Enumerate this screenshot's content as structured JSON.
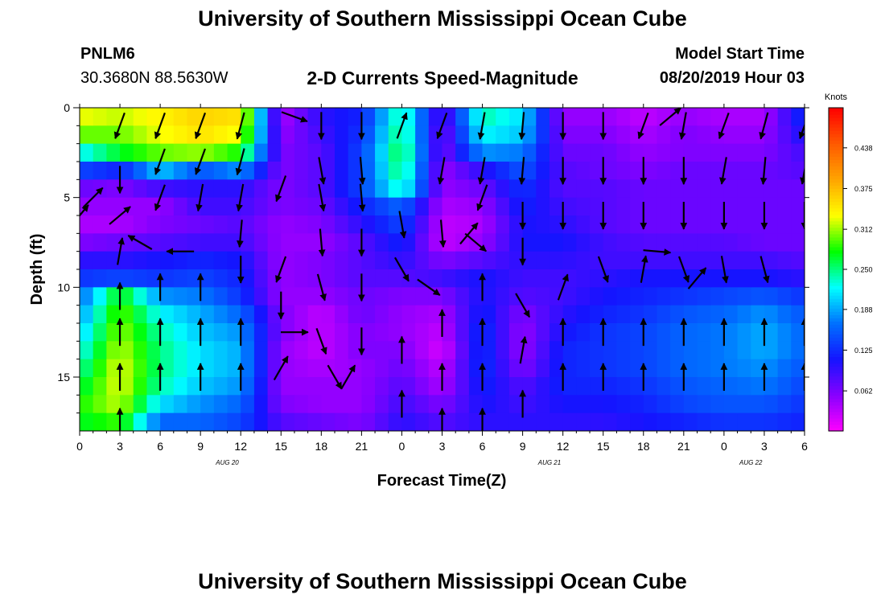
{
  "header": {
    "title": "University of Southern Mississippi Ocean Cube",
    "station_id": "PNLM6",
    "station_coords": "30.3680N 88.5630W",
    "subtitle": "2-D Currents Speed-Magnitude",
    "model_label": "Model Start Time",
    "model_time": "08/20/2019 Hour 03"
  },
  "footer": {
    "title": "University of Southern Mississippi Ocean Cube"
  },
  "chart_data": {
    "type": "heatmap",
    "xlabel": "Forecast Time(Z)",
    "ylabel": "Depth (ft)",
    "x_ticks": [
      "0",
      "3",
      "6",
      "9",
      "12",
      "15",
      "18",
      "21",
      "0",
      "3",
      "6",
      "9",
      "12",
      "15",
      "18",
      "21",
      "0",
      "3",
      "6"
    ],
    "date_labels": [
      {
        "label": "AUG 20",
        "tick_index": 11
      },
      {
        "label": "AUG 21",
        "tick_index": 35
      },
      {
        "label": "AUG 22",
        "tick_index": 50
      }
    ],
    "y_ticks": [
      0,
      5,
      10,
      15
    ],
    "ylim": [
      0,
      18
    ],
    "xlim_hours": [
      0,
      54
    ],
    "colorbar": {
      "title": "Knots",
      "tick_labels": [
        "0.062",
        "0.125",
        "0.188",
        "0.250",
        "0.312",
        "0.375",
        "0.438"
      ],
      "tick_values": [
        0.062,
        0.125,
        0.188,
        0.25,
        0.312,
        0.375,
        0.438
      ],
      "range": [
        0,
        0.5
      ],
      "colors": [
        "#ff00ff",
        "#8800ff",
        "#1414ff",
        "#0070ff",
        "#00ffff",
        "#00ff00",
        "#ffff00",
        "#ffa500",
        "#ff5a00",
        "#ff0000"
      ]
    },
    "depths": [
      0.5,
      1.5,
      2.5,
      3.5,
      4.5,
      5.5,
      6.5,
      7.5,
      8.5,
      9.5,
      10.5,
      11.5,
      12.5,
      13.5,
      14.5,
      15.5,
      16.5,
      17.5
    ],
    "columns": [
      {
        "hour": 0,
        "speed": [
          0.33,
          0.3,
          0.22,
          0.14,
          0.07,
          0.05,
          0.04,
          0.06,
          0.1,
          0.13,
          0.16,
          0.18,
          0.2,
          0.22,
          0.24,
          0.26,
          0.28,
          0.27
        ]
      },
      {
        "hour": 3,
        "speed": [
          0.32,
          0.3,
          0.27,
          0.12,
          0.06,
          0.05,
          0.04,
          0.07,
          0.1,
          0.14,
          0.28,
          0.3,
          0.31,
          0.32,
          0.33,
          0.33,
          0.32,
          0.29
        ]
      },
      {
        "hour": 6,
        "speed": [
          0.34,
          0.33,
          0.3,
          0.2,
          0.09,
          0.05,
          0.06,
          0.08,
          0.11,
          0.13,
          0.18,
          0.22,
          0.24,
          0.25,
          0.25,
          0.24,
          0.21,
          0.16
        ]
      },
      {
        "hour": 9,
        "speed": [
          0.36,
          0.35,
          0.31,
          0.15,
          0.1,
          0.09,
          0.07,
          0.09,
          0.12,
          0.14,
          0.17,
          0.19,
          0.2,
          0.21,
          0.21,
          0.2,
          0.18,
          0.16
        ]
      },
      {
        "hour": 12,
        "speed": [
          0.35,
          0.33,
          0.28,
          0.18,
          0.1,
          0.09,
          0.08,
          0.09,
          0.11,
          0.12,
          0.13,
          0.16,
          0.18,
          0.19,
          0.19,
          0.18,
          0.16,
          0.14
        ]
      },
      {
        "hour": 15,
        "speed": [
          0.04,
          0.05,
          0.06,
          0.06,
          0.06,
          0.06,
          0.05,
          0.05,
          0.05,
          0.05,
          0.05,
          0.06,
          0.06,
          0.05,
          0.05,
          0.05,
          0.06,
          0.08
        ]
      },
      {
        "hour": 18,
        "speed": [
          0.1,
          0.09,
          0.08,
          0.08,
          0.08,
          0.07,
          0.06,
          0.05,
          0.06,
          0.06,
          0.05,
          0.03,
          0.03,
          0.03,
          0.04,
          0.05,
          0.05,
          0.07
        ]
      },
      {
        "hour": 21,
        "speed": [
          0.12,
          0.13,
          0.14,
          0.14,
          0.14,
          0.12,
          0.1,
          0.08,
          0.08,
          0.08,
          0.07,
          0.07,
          0.06,
          0.06,
          0.05,
          0.05,
          0.05,
          0.06
        ]
      },
      {
        "hour": 24,
        "speed": [
          0.25,
          0.26,
          0.27,
          0.26,
          0.24,
          0.16,
          0.14,
          0.12,
          0.1,
          0.08,
          0.06,
          0.05,
          0.05,
          0.06,
          0.07,
          0.08,
          0.09,
          0.1
        ]
      },
      {
        "hour": 27,
        "speed": [
          0.07,
          0.06,
          0.06,
          0.05,
          0.05,
          0.04,
          0.03,
          0.03,
          0.06,
          0.09,
          0.06,
          0.04,
          0.03,
          0.02,
          0.03,
          0.04,
          0.06,
          0.08
        ]
      },
      {
        "hour": 30,
        "speed": [
          0.24,
          0.22,
          0.18,
          0.1,
          0.07,
          0.05,
          0.04,
          0.05,
          0.08,
          0.11,
          0.11,
          0.12,
          0.13,
          0.13,
          0.13,
          0.12,
          0.11,
          0.1
        ]
      },
      {
        "hour": 33,
        "speed": [
          0.21,
          0.2,
          0.17,
          0.15,
          0.13,
          0.12,
          0.11,
          0.11,
          0.1,
          0.09,
          0.08,
          0.06,
          0.05,
          0.05,
          0.06,
          0.08,
          0.09,
          0.1
        ]
      },
      {
        "hour": 36,
        "speed": [
          0.05,
          0.06,
          0.07,
          0.08,
          0.08,
          0.09,
          0.1,
          0.11,
          0.1,
          0.09,
          0.09,
          0.1,
          0.11,
          0.12,
          0.12,
          0.12,
          0.11,
          0.1
        ]
      },
      {
        "hour": 39,
        "speed": [
          0.05,
          0.06,
          0.07,
          0.07,
          0.08,
          0.08,
          0.08,
          0.09,
          0.09,
          0.1,
          0.11,
          0.12,
          0.13,
          0.13,
          0.13,
          0.12,
          0.11,
          0.1
        ]
      },
      {
        "hour": 42,
        "speed": [
          0.03,
          0.04,
          0.05,
          0.06,
          0.07,
          0.07,
          0.07,
          0.08,
          0.09,
          0.11,
          0.12,
          0.13,
          0.14,
          0.14,
          0.14,
          0.13,
          0.12,
          0.11
        ]
      },
      {
        "hour": 45,
        "speed": [
          0.05,
          0.06,
          0.06,
          0.07,
          0.07,
          0.07,
          0.07,
          0.08,
          0.09,
          0.11,
          0.13,
          0.15,
          0.16,
          0.16,
          0.16,
          0.15,
          0.14,
          0.12
        ]
      },
      {
        "hour": 48,
        "speed": [
          0.04,
          0.05,
          0.06,
          0.07,
          0.07,
          0.07,
          0.07,
          0.08,
          0.09,
          0.11,
          0.14,
          0.16,
          0.17,
          0.17,
          0.17,
          0.16,
          0.15,
          0.13
        ]
      },
      {
        "hour": 51,
        "speed": [
          0.04,
          0.05,
          0.06,
          0.07,
          0.07,
          0.07,
          0.07,
          0.07,
          0.09,
          0.11,
          0.15,
          0.18,
          0.19,
          0.19,
          0.18,
          0.17,
          0.15,
          0.13
        ]
      },
      {
        "hour": 54,
        "speed": [
          0.13,
          0.11,
          0.09,
          0.08,
          0.07,
          0.07,
          0.07,
          0.07,
          0.08,
          0.1,
          0.13,
          0.15,
          0.16,
          0.16,
          0.15,
          0.14,
          0.13,
          0.12
        ]
      }
    ],
    "vectors": [
      {
        "hour": 0,
        "depth": 6.0,
        "dir": 40
      },
      {
        "hour": 1,
        "depth": 5.0,
        "dir": 45
      },
      {
        "hour": 3,
        "depth": 1.0,
        "dir": 200
      },
      {
        "hour": 3,
        "depth": 4.0,
        "dir": 180
      },
      {
        "hour": 3,
        "depth": 6.0,
        "dir": 50
      },
      {
        "hour": 3,
        "depth": 8.0,
        "dir": 10
      },
      {
        "hour": 3,
        "depth": 10.5,
        "dir": 0
      },
      {
        "hour": 3,
        "depth": 12.5,
        "dir": 0
      },
      {
        "hour": 3,
        "depth": 15.0,
        "dir": 0
      },
      {
        "hour": 3,
        "depth": 17.5,
        "dir": 0
      },
      {
        "hour": 4.5,
        "depth": 7.5,
        "dir": 300
      },
      {
        "hour": 6,
        "depth": 1.0,
        "dir": 200
      },
      {
        "hour": 6,
        "depth": 3.0,
        "dir": 200
      },
      {
        "hour": 6,
        "depth": 5.0,
        "dir": 200
      },
      {
        "hour": 6,
        "depth": 10.0,
        "dir": 0
      },
      {
        "hour": 6,
        "depth": 12.5,
        "dir": 0
      },
      {
        "hour": 6,
        "depth": 15.0,
        "dir": 0
      },
      {
        "hour": 7.5,
        "depth": 8.0,
        "dir": 270
      },
      {
        "hour": 9,
        "depth": 1.0,
        "dir": 200
      },
      {
        "hour": 9,
        "depth": 3.0,
        "dir": 200
      },
      {
        "hour": 9,
        "depth": 5.0,
        "dir": 190
      },
      {
        "hour": 9,
        "depth": 10.0,
        "dir": 0
      },
      {
        "hour": 9,
        "depth": 12.5,
        "dir": 0
      },
      {
        "hour": 9,
        "depth": 15.0,
        "dir": 0
      },
      {
        "hour": 12,
        "depth": 1.0,
        "dir": 195
      },
      {
        "hour": 12,
        "depth": 3.0,
        "dir": 195
      },
      {
        "hour": 12,
        "depth": 5.0,
        "dir": 190
      },
      {
        "hour": 12,
        "depth": 7.0,
        "dir": 185
      },
      {
        "hour": 12,
        "depth": 9.0,
        "dir": 180
      },
      {
        "hour": 12,
        "depth": 12.5,
        "dir": 0
      },
      {
        "hour": 12,
        "depth": 15.0,
        "dir": 0
      },
      {
        "hour": 15,
        "depth": 4.5,
        "dir": 200
      },
      {
        "hour": 16,
        "depth": 0.5,
        "dir": 110
      },
      {
        "hour": 15,
        "depth": 9.0,
        "dir": 200
      },
      {
        "hour": 15,
        "depth": 11.0,
        "dir": 180
      },
      {
        "hour": 15,
        "depth": 14.5,
        "dir": 30
      },
      {
        "hour": 16,
        "depth": 12.5,
        "dir": 90
      },
      {
        "hour": 18,
        "depth": 1.0,
        "dir": 180
      },
      {
        "hour": 18,
        "depth": 3.5,
        "dir": 170
      },
      {
        "hour": 18,
        "depth": 5.0,
        "dir": 170
      },
      {
        "hour": 18,
        "depth": 7.5,
        "dir": 175
      },
      {
        "hour": 18,
        "depth": 10.0,
        "dir": 165
      },
      {
        "hour": 18,
        "depth": 13.0,
        "dir": 160
      },
      {
        "hour": 19,
        "depth": 15.0,
        "dir": 150
      },
      {
        "hour": 20,
        "depth": 15.0,
        "dir": 30
      },
      {
        "hour": 21,
        "depth": 1.0,
        "dir": 180
      },
      {
        "hour": 21,
        "depth": 3.5,
        "dir": 175
      },
      {
        "hour": 21,
        "depth": 5.0,
        "dir": 175
      },
      {
        "hour": 21,
        "depth": 7.5,
        "dir": 180
      },
      {
        "hour": 21,
        "depth": 10.0,
        "dir": 180
      },
      {
        "hour": 21,
        "depth": 13.0,
        "dir": 180
      },
      {
        "hour": 24,
        "depth": 1.0,
        "dir": 20
      },
      {
        "hour": 24,
        "depth": 6.5,
        "dir": 170
      },
      {
        "hour": 24,
        "depth": 9.0,
        "dir": 150
      },
      {
        "hour": 24,
        "depth": 13.5,
        "dir": 0
      },
      {
        "hour": 24,
        "depth": 16.5,
        "dir": 0
      },
      {
        "hour": 26,
        "depth": 10.0,
        "dir": 125
      },
      {
        "hour": 27,
        "depth": 1.0,
        "dir": 200
      },
      {
        "hour": 27,
        "depth": 3.5,
        "dir": 190
      },
      {
        "hour": 27,
        "depth": 7.0,
        "dir": 175
      },
      {
        "hour": 27,
        "depth": 12.0,
        "dir": 0
      },
      {
        "hour": 27,
        "depth": 15.0,
        "dir": 0
      },
      {
        "hour": 27,
        "depth": 17.5,
        "dir": 0
      },
      {
        "hour": 29,
        "depth": 7.0,
        "dir": 40
      },
      {
        "hour": 30,
        "depth": 1.0,
        "dir": 190
      },
      {
        "hour": 30,
        "depth": 3.5,
        "dir": 190
      },
      {
        "hour": 30,
        "depth": 5.0,
        "dir": 200
      },
      {
        "hour": 30,
        "depth": 10.0,
        "dir": 0
      },
      {
        "hour": 30,
        "depth": 12.5,
        "dir": 0
      },
      {
        "hour": 30,
        "depth": 15.0,
        "dir": 0
      },
      {
        "hour": 30,
        "depth": 17.5,
        "dir": 0
      },
      {
        "hour": 29.5,
        "depth": 7.5,
        "dir": 130
      },
      {
        "hour": 33,
        "depth": 1.0,
        "dir": 185
      },
      {
        "hour": 33,
        "depth": 3.5,
        "dir": 185
      },
      {
        "hour": 33,
        "depth": 6.0,
        "dir": 180
      },
      {
        "hour": 33,
        "depth": 8.0,
        "dir": 180
      },
      {
        "hour": 33,
        "depth": 11.0,
        "dir": 150
      },
      {
        "hour": 33,
        "depth": 13.5,
        "dir": 10
      },
      {
        "hour": 33,
        "depth": 16.5,
        "dir": 0
      },
      {
        "hour": 36,
        "depth": 1.0,
        "dir": 180
      },
      {
        "hour": 36,
        "depth": 3.5,
        "dir": 180
      },
      {
        "hour": 36,
        "depth": 6.0,
        "dir": 180
      },
      {
        "hour": 36,
        "depth": 10.0,
        "dir": 20
      },
      {
        "hour": 36,
        "depth": 12.5,
        "dir": 0
      },
      {
        "hour": 36,
        "depth": 15.0,
        "dir": 0
      },
      {
        "hour": 39,
        "depth": 1.0,
        "dir": 180
      },
      {
        "hour": 39,
        "depth": 3.5,
        "dir": 180
      },
      {
        "hour": 39,
        "depth": 6.0,
        "dir": 180
      },
      {
        "hour": 39,
        "depth": 9.0,
        "dir": 160
      },
      {
        "hour": 39,
        "depth": 12.5,
        "dir": 0
      },
      {
        "hour": 39,
        "depth": 15.0,
        "dir": 0
      },
      {
        "hour": 42,
        "depth": 1.0,
        "dir": 200
      },
      {
        "hour": 42,
        "depth": 3.5,
        "dir": 180
      },
      {
        "hour": 42,
        "depth": 6.0,
        "dir": 180
      },
      {
        "hour": 42,
        "depth": 9.0,
        "dir": 10
      },
      {
        "hour": 42,
        "depth": 12.5,
        "dir": 0
      },
      {
        "hour": 42,
        "depth": 15.0,
        "dir": 0
      },
      {
        "hour": 44,
        "depth": 0.5,
        "dir": 50
      },
      {
        "hour": 43,
        "depth": 8.0,
        "dir": 95
      },
      {
        "hour": 45,
        "depth": 1.0,
        "dir": 190
      },
      {
        "hour": 45,
        "depth": 3.5,
        "dir": 180
      },
      {
        "hour": 45,
        "depth": 6.0,
        "dir": 180
      },
      {
        "hour": 45,
        "depth": 9.0,
        "dir": 160
      },
      {
        "hour": 45,
        "depth": 12.5,
        "dir": 0
      },
      {
        "hour": 45,
        "depth": 15.0,
        "dir": 0
      },
      {
        "hour": 46,
        "depth": 9.5,
        "dir": 40
      },
      {
        "hour": 48,
        "depth": 1.0,
        "dir": 200
      },
      {
        "hour": 48,
        "depth": 3.5,
        "dir": 190
      },
      {
        "hour": 48,
        "depth": 6.0,
        "dir": 180
      },
      {
        "hour": 48,
        "depth": 9.0,
        "dir": 170
      },
      {
        "hour": 48,
        "depth": 12.5,
        "dir": 0
      },
      {
        "hour": 48,
        "depth": 15.0,
        "dir": 0
      },
      {
        "hour": 51,
        "depth": 1.0,
        "dir": 195
      },
      {
        "hour": 51,
        "depth": 3.5,
        "dir": 185
      },
      {
        "hour": 51,
        "depth": 6.0,
        "dir": 180
      },
      {
        "hour": 51,
        "depth": 9.0,
        "dir": 165
      },
      {
        "hour": 51,
        "depth": 12.5,
        "dir": 0
      },
      {
        "hour": 51,
        "depth": 15.0,
        "dir": 0
      },
      {
        "hour": 54,
        "depth": 1.0,
        "dir": 200
      },
      {
        "hour": 54,
        "depth": 3.5,
        "dir": 190
      },
      {
        "hour": 54,
        "depth": 6.0,
        "dir": 180
      },
      {
        "hour": 54,
        "depth": 12.5,
        "dir": 0
      },
      {
        "hour": 54,
        "depth": 15.0,
        "dir": 0
      }
    ]
  }
}
